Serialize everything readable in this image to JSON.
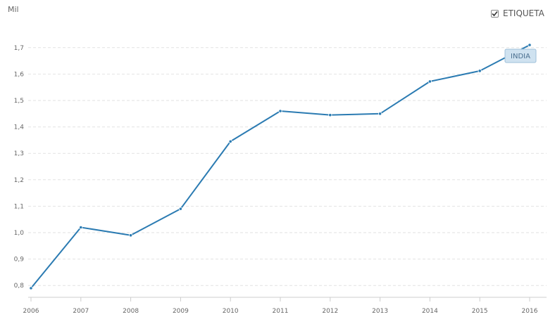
{
  "chart_data": {
    "type": "line",
    "title": "",
    "unit_label": "Mil",
    "xlabel": "",
    "ylabel": "",
    "categories": [
      "2006",
      "2007",
      "2008",
      "2009",
      "2010",
      "2011",
      "2012",
      "2013",
      "2014",
      "2015",
      "2016"
    ],
    "series": [
      {
        "name": "INDIA",
        "values": [
          0.79,
          1.02,
          0.99,
          1.09,
          1.345,
          1.46,
          1.445,
          1.45,
          1.572,
          1.612,
          1.71
        ]
      }
    ],
    "yticks": [
      "0,8",
      "0,9",
      "1,0",
      "1,1",
      "1,2",
      "1,3",
      "1,4",
      "1,5",
      "1,6",
      "1,7"
    ],
    "ylim": [
      0.79,
      1.71
    ],
    "grid": true,
    "series_color": "#2b7bb2",
    "legend": {
      "label": "ETIQUETA",
      "checked": true,
      "placement": "top-right"
    }
  }
}
